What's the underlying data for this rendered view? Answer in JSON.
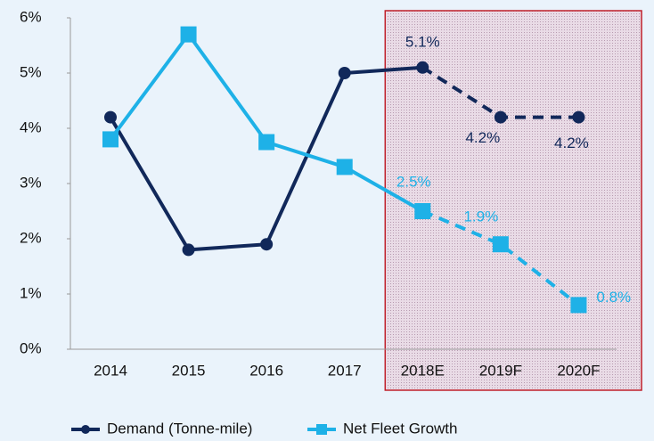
{
  "chart_data": {
    "type": "line",
    "categories": [
      "2014",
      "2015",
      "2016",
      "2017",
      "2018E",
      "2019F",
      "2020F"
    ],
    "dashed_from": "2018E",
    "series": [
      {
        "name": "Demand (Tonne-mile)",
        "color": "#11285a",
        "marker": "circle",
        "values": [
          4.2,
          1.8,
          1.9,
          5.0,
          5.1,
          4.2,
          4.2
        ],
        "value_labels": [
          null,
          null,
          null,
          null,
          "5.1%",
          "4.2%",
          "4.2%"
        ]
      },
      {
        "name": "Net Fleet Growth",
        "color": "#1eb1e7",
        "marker": "square",
        "values": [
          3.8,
          5.7,
          3.75,
          3.3,
          2.5,
          1.9,
          0.8
        ],
        "value_labels": [
          null,
          null,
          null,
          null,
          "2.5%",
          "1.9%",
          "0.8%"
        ]
      }
    ],
    "ylim": [
      0,
      6
    ],
    "yticks": [
      {
        "value": 0,
        "label": "0%"
      },
      {
        "value": 1,
        "label": "1%"
      },
      {
        "value": 2,
        "label": "2%"
      },
      {
        "value": 3,
        "label": "3%"
      },
      {
        "value": 4,
        "label": "4%"
      },
      {
        "value": 5,
        "label": "5%"
      },
      {
        "value": 6,
        "label": "6%"
      }
    ],
    "grid": false,
    "legend": "bottom"
  }
}
